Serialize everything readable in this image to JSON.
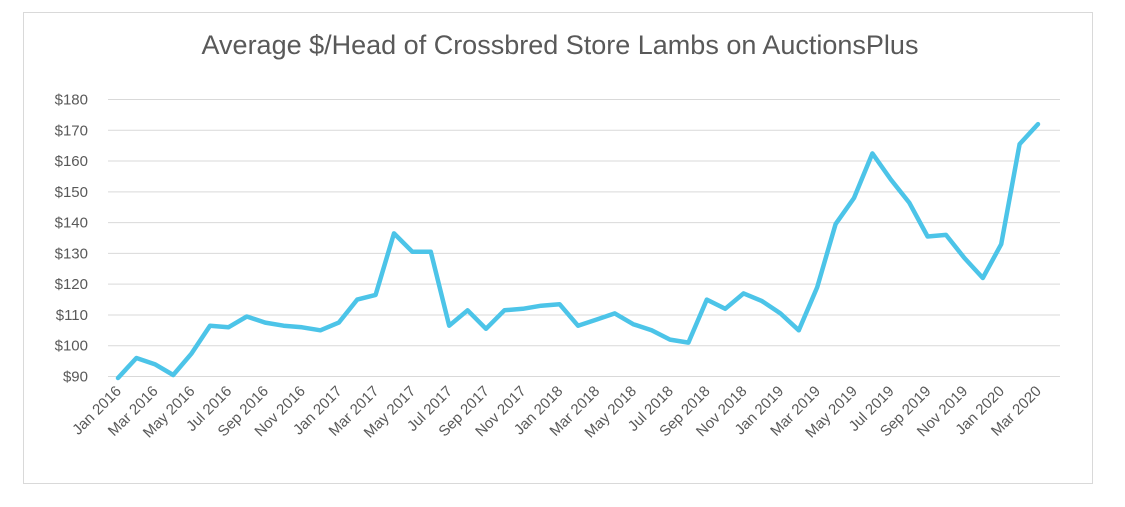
{
  "chart_data": {
    "type": "line",
    "title": "Average $/Head of Crossbred Store Lambs on AuctionsPlus",
    "xlabel": "",
    "ylabel": "",
    "ylim": [
      90,
      180
    ],
    "y_ticks": [
      "$90",
      "$100",
      "$110",
      "$120",
      "$130",
      "$140",
      "$150",
      "$160",
      "$170",
      "$180"
    ],
    "y_tick_values": [
      90,
      100,
      110,
      120,
      130,
      140,
      150,
      160,
      170,
      180
    ],
    "x_tick_labels": [
      "Jan 2016",
      "Mar 2016",
      "May 2016",
      "Jul 2016",
      "Sep 2016",
      "Nov 2016",
      "Jan 2017",
      "Mar 2017",
      "May 2017",
      "Jul 2017",
      "Sep 2017",
      "Nov 2017",
      "Jan 2018",
      "Mar 2018",
      "May 2018",
      "Jul 2018",
      "Sep 2018",
      "Nov 2018",
      "Jan 2019",
      "Mar 2019",
      "May 2019",
      "Jul 2019",
      "Sep 2019",
      "Nov 2019",
      "Jan 2020",
      "Mar 2020"
    ],
    "grid": true,
    "line_color": "#4cc4e8",
    "series": [
      {
        "values": [
          89.5,
          96,
          94,
          90.5,
          97.5,
          106.5,
          106,
          109.5,
          107.5,
          106.5,
          106,
          105,
          107.5,
          115,
          116.5,
          136.5,
          130.5,
          130.5,
          106.5,
          111.5,
          105.5,
          111.5,
          112,
          113,
          113.5,
          106.5,
          108.5,
          110.5,
          107,
          105,
          102,
          101,
          115,
          112,
          117,
          114.5,
          110.5,
          105,
          119,
          139.5,
          148,
          162.5,
          154,
          146.5,
          135.5,
          136,
          128.5,
          122,
          133,
          165.5,
          172
        ]
      }
    ]
  }
}
